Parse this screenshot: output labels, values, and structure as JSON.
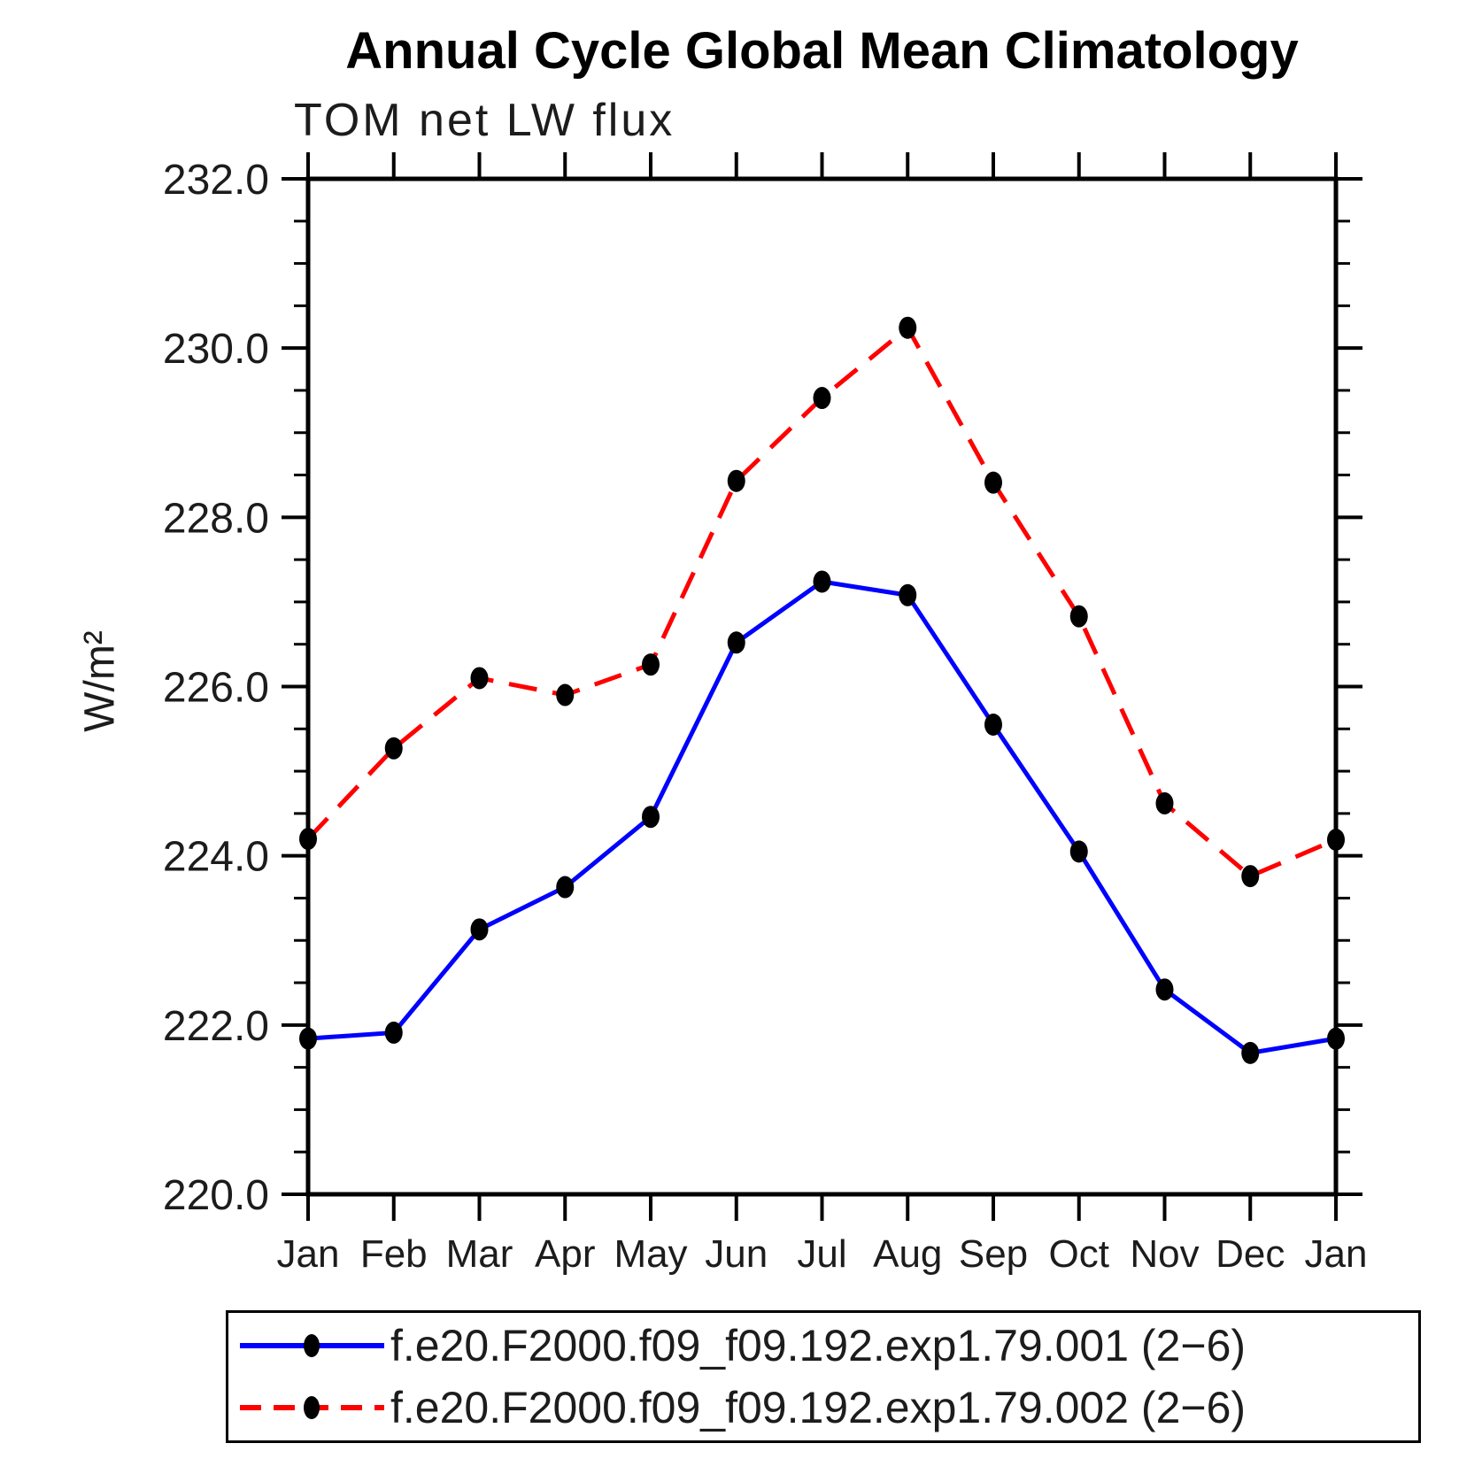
{
  "chart_data": {
    "type": "line",
    "title": "Annual Cycle Global Mean Climatology",
    "subtitle": "TOM net LW flux",
    "ylabel": "W/m²",
    "xlabel": "",
    "categories": [
      "Jan",
      "Feb",
      "Mar",
      "Apr",
      "May",
      "Jun",
      "Jul",
      "Aug",
      "Sep",
      "Oct",
      "Nov",
      "Dec",
      "Jan"
    ],
    "ylim": [
      220.0,
      232.0
    ],
    "ytick_step": 2.0,
    "yminor_step": 0.5,
    "ytick_labels": [
      "220.0",
      "222.0",
      "224.0",
      "226.0",
      "228.0",
      "230.0",
      "232.0"
    ],
    "grid": false,
    "legend_position": "bottom",
    "axis_color": "#000000",
    "series": [
      {
        "label": "f.e20.F2000.f09_f09.192.exp1.79.001 (2−6)",
        "color": "#0000ff",
        "line_style": "solid",
        "marker": "filled-circle",
        "marker_color": "#000000",
        "values": [
          221.84,
          221.91,
          223.13,
          223.63,
          224.46,
          226.52,
          227.24,
          227.08,
          225.55,
          224.05,
          222.42,
          221.67,
          221.84
        ]
      },
      {
        "label": "f.e20.F2000.f09_f09.192.exp1.79.002 (2−6)",
        "color": "#ff0000",
        "line_style": "dashed",
        "marker": "filled-circle",
        "marker_color": "#000000",
        "values": [
          224.2,
          225.27,
          226.1,
          225.9,
          226.26,
          228.43,
          229.41,
          230.24,
          228.41,
          226.83,
          224.62,
          223.76,
          224.19
        ]
      }
    ]
  }
}
